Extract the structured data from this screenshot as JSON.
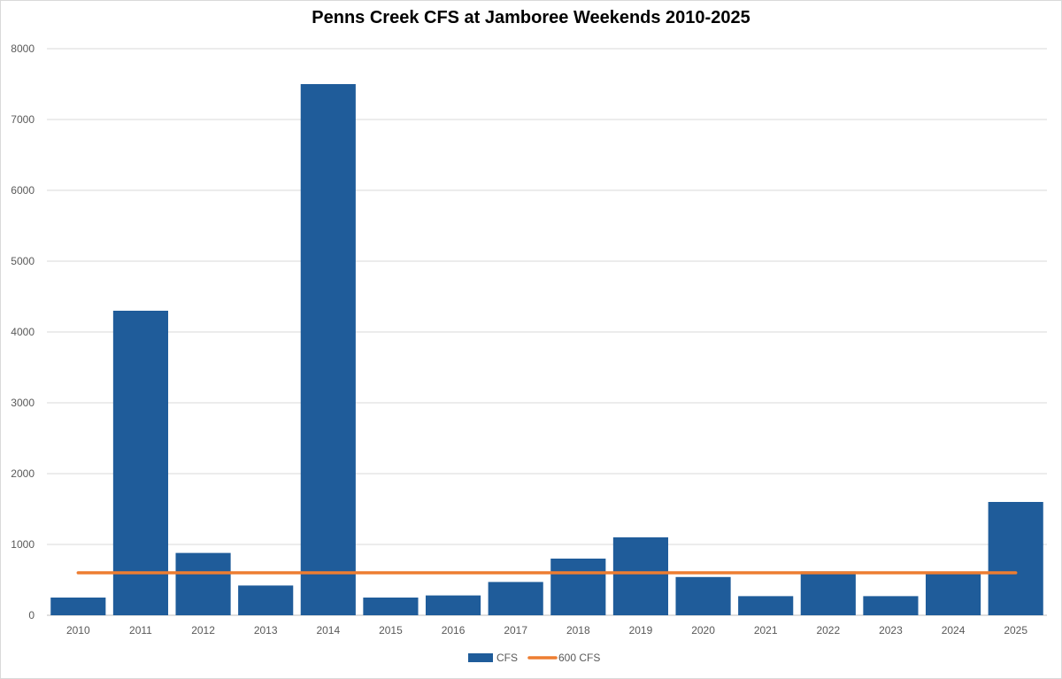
{
  "chart_data": {
    "type": "bar",
    "title": "Penns Creek CFS at Jamboree Weekends 2010-2025",
    "xlabel": "",
    "ylabel": "",
    "categories": [
      "2010",
      "2011",
      "2012",
      "2013",
      "2014",
      "2015",
      "2016",
      "2017",
      "2018",
      "2019",
      "2020",
      "2021",
      "2022",
      "2023",
      "2024",
      "2025"
    ],
    "series": [
      {
        "name": "CFS",
        "type": "bar",
        "color": "#1F5C9A",
        "values": [
          250,
          4300,
          880,
          420,
          7500,
          250,
          280,
          470,
          800,
          1100,
          540,
          270,
          620,
          270,
          610,
          1600
        ]
      },
      {
        "name": "600 CFS",
        "type": "line",
        "color": "#ED7D31",
        "values": [
          600,
          600,
          600,
          600,
          600,
          600,
          600,
          600,
          600,
          600,
          600,
          600,
          600,
          600,
          600,
          600
        ]
      }
    ],
    "ylim": [
      0,
      8000
    ],
    "yticks": [
      0,
      1000,
      2000,
      3000,
      4000,
      5000,
      6000,
      7000,
      8000
    ],
    "grid": true,
    "legend_position": "bottom"
  }
}
